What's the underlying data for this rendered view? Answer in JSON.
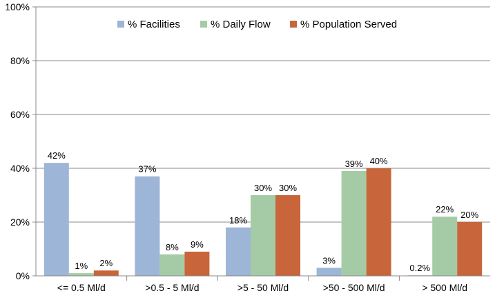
{
  "chart_data": {
    "type": "bar",
    "categories": [
      "<= 0.5 Ml/d",
      ">0.5 - 5 Ml/d",
      ">5 - 50 Ml/d",
      ">50 - 500 Ml/d",
      "> 500 Ml/d"
    ],
    "series": [
      {
        "name": "% Facilities",
        "values": [
          42,
          37,
          18,
          3,
          0.2
        ],
        "labels": [
          "42%",
          "37%",
          "18%",
          "3%",
          "0.2%"
        ],
        "color": "#9DB5D6"
      },
      {
        "name": "% Daily Flow",
        "values": [
          1,
          8,
          30,
          39,
          22
        ],
        "labels": [
          "1%",
          "8%",
          "30%",
          "39%",
          "22%"
        ],
        "color": "#A5CBA6"
      },
      {
        "name": "% Population Served",
        "values": [
          2,
          9,
          30,
          40,
          20
        ],
        "labels": [
          "2%",
          "9%",
          "30%",
          "40%",
          "20%"
        ],
        "color": "#C8653A"
      }
    ],
    "ylim": [
      0,
      100
    ],
    "yticks": [
      "0%",
      "20%",
      "40%",
      "60%",
      "80%",
      "100%"
    ],
    "ytick_values": [
      0,
      20,
      40,
      60,
      80,
      100
    ],
    "grid": true,
    "legend": "top-center",
    "gridline_color": "#888888"
  }
}
